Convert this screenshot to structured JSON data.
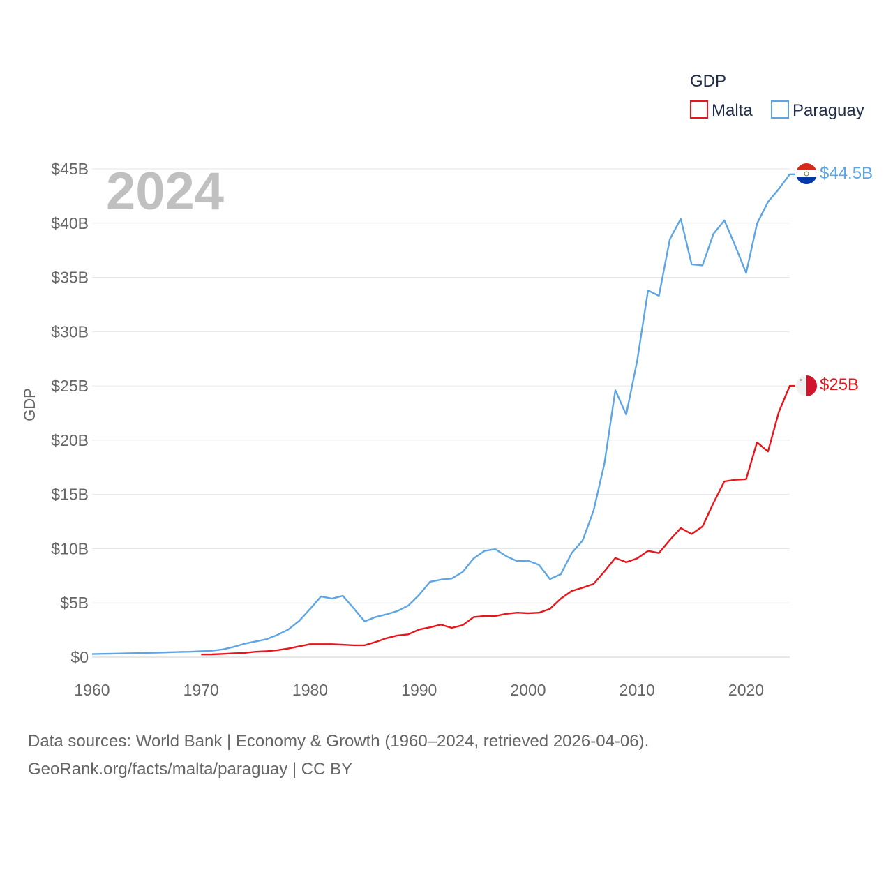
{
  "legend": {
    "title": "GDP",
    "items": [
      "Malta",
      "Paraguay"
    ]
  },
  "year_label": "2024",
  "end_labels": {
    "Paraguay": "$44.5B",
    "Malta": "$25B"
  },
  "source": {
    "line1": "Data sources: World Bank | Economy & Growth (1960–2024, retrieved 2026-04-06).",
    "line2": "GeoRank.org/facts/malta/paraguay | CC BY"
  },
  "chart_data": {
    "type": "line",
    "title": "",
    "xlabel": "",
    "ylabel": "GDP",
    "xlim": [
      1960,
      2024
    ],
    "ylim": [
      0,
      45
    ],
    "y_unit": "billion USD",
    "grid": true,
    "legend_position": "top-right",
    "x_ticks": [
      1960,
      1970,
      1980,
      1990,
      2000,
      2010,
      2020
    ],
    "x_tick_labels": [
      "1960",
      "1970",
      "1980",
      "1990",
      "2000",
      "2010",
      "2020"
    ],
    "y_ticks": [
      0,
      5,
      10,
      15,
      20,
      25,
      30,
      35,
      40,
      45
    ],
    "y_tick_labels": [
      "$0",
      "$5B",
      "$10B",
      "$15B",
      "$20B",
      "$25B",
      "$30B",
      "$35B",
      "$40B",
      "$45B"
    ],
    "series": [
      {
        "name": "Malta",
        "color": "#e8161c",
        "x": [
          1970,
          1971,
          1972,
          1973,
          1974,
          1975,
          1976,
          1977,
          1978,
          1979,
          1980,
          1981,
          1982,
          1983,
          1984,
          1985,
          1986,
          1987,
          1988,
          1989,
          1990,
          1991,
          1992,
          1993,
          1994,
          1995,
          1996,
          1997,
          1998,
          1999,
          2000,
          2001,
          2002,
          2003,
          2004,
          2005,
          2006,
          2007,
          2008,
          2009,
          2010,
          2011,
          2012,
          2013,
          2014,
          2015,
          2016,
          2017,
          2018,
          2019,
          2020,
          2021,
          2022,
          2023,
          2024
        ],
        "values": [
          0.25,
          0.26,
          0.3,
          0.36,
          0.4,
          0.5,
          0.55,
          0.65,
          0.8,
          1.0,
          1.2,
          1.2,
          1.2,
          1.15,
          1.1,
          1.1,
          1.4,
          1.75,
          2.0,
          2.1,
          2.55,
          2.75,
          3.0,
          2.7,
          2.95,
          3.7,
          3.8,
          3.8,
          4.0,
          4.1,
          4.05,
          4.1,
          4.45,
          5.4,
          6.1,
          6.4,
          6.75,
          7.9,
          9.15,
          8.75,
          9.1,
          9.8,
          9.6,
          10.8,
          11.9,
          11.35,
          12.05,
          14.2,
          16.2,
          16.35,
          16.4,
          19.8,
          18.95,
          22.6,
          25.0
        ]
      },
      {
        "name": "Paraguay",
        "color": "#5da5e4",
        "x": [
          1960,
          1961,
          1962,
          1963,
          1964,
          1965,
          1966,
          1967,
          1968,
          1969,
          1970,
          1971,
          1972,
          1973,
          1974,
          1975,
          1976,
          1977,
          1978,
          1979,
          1980,
          1981,
          1982,
          1983,
          1984,
          1985,
          1986,
          1987,
          1988,
          1989,
          1990,
          1991,
          1992,
          1993,
          1994,
          1995,
          1996,
          1997,
          1998,
          1999,
          2000,
          2001,
          2002,
          2003,
          2004,
          2005,
          2006,
          2007,
          2008,
          2009,
          2010,
          2011,
          2012,
          2013,
          2014,
          2015,
          2016,
          2017,
          2018,
          2019,
          2020,
          2021,
          2022,
          2023,
          2024
        ],
        "values": [
          0.28,
          0.31,
          0.33,
          0.35,
          0.37,
          0.4,
          0.42,
          0.45,
          0.48,
          0.5,
          0.55,
          0.6,
          0.72,
          0.95,
          1.25,
          1.45,
          1.65,
          2.05,
          2.55,
          3.35,
          4.45,
          5.6,
          5.4,
          5.65,
          4.5,
          3.3,
          3.7,
          3.95,
          4.25,
          4.75,
          5.75,
          6.95,
          7.15,
          7.25,
          7.85,
          9.1,
          9.8,
          9.95,
          9.3,
          8.85,
          8.9,
          8.5,
          7.2,
          7.65,
          9.6,
          10.75,
          13.5,
          17.85,
          24.6,
          22.35,
          27.3,
          33.8,
          33.3,
          38.5,
          40.4,
          36.2,
          36.1,
          39.0,
          40.25,
          37.9,
          35.4,
          39.95,
          41.95,
          43.15,
          44.5
        ]
      }
    ]
  }
}
